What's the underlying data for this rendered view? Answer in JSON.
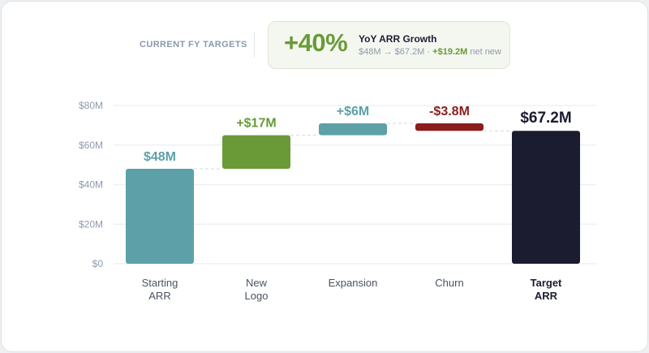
{
  "header": {
    "label": "CURRENT FY TARGETS",
    "kpi_value": "+40%",
    "kpi_title": "YoY ARR Growth",
    "kpi_from": "$48M",
    "kpi_arrow": "→",
    "kpi_to": "$67.2M",
    "kpi_sep": "·",
    "kpi_net": "+$19.2M",
    "kpi_net_suffix": "net new"
  },
  "chart_data": {
    "type": "waterfall",
    "categories": [
      [
        "Starting",
        "ARR"
      ],
      [
        "New",
        "Logo"
      ],
      [
        "Expansion"
      ],
      [
        "Churn"
      ],
      [
        "Target",
        "ARR"
      ]
    ],
    "steps": [
      {
        "kind": "total",
        "value": 48,
        "label": "$48M",
        "color": "#5da0a8"
      },
      {
        "kind": "delta",
        "value": 17,
        "label": "+$17M",
        "color": "#6a9a38"
      },
      {
        "kind": "delta",
        "value": 6,
        "label": "+$6M",
        "color": "#5da0a8"
      },
      {
        "kind": "delta",
        "value": -3.8,
        "label": "-$3.8M",
        "color": "#8b1d1d"
      },
      {
        "kind": "total",
        "value": 67.2,
        "label": "$67.2M",
        "color": "#1b1c30"
      }
    ],
    "ylim": [
      0,
      80
    ],
    "yticks": [
      0,
      20,
      40,
      60,
      80
    ],
    "ytick_labels": [
      "$0",
      "$20M",
      "$40M",
      "$60M",
      "$80M"
    ],
    "grid": true
  }
}
